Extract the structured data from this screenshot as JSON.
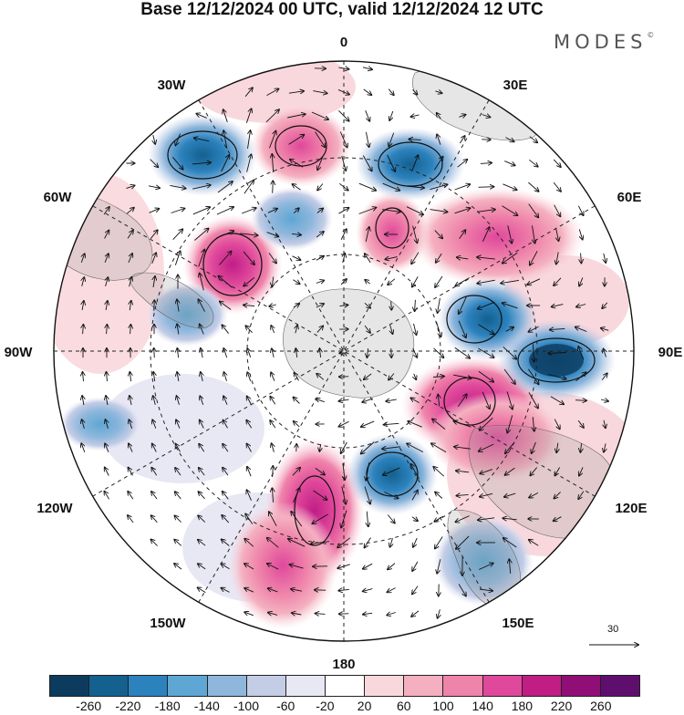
{
  "title": "Base 12/12/2024 00 UTC, valid 12/12/2024 12 UTC",
  "logo": {
    "text": "MODES",
    "mark": "©"
  },
  "longitude_labels": {
    "n0": "0",
    "n30e": "30E",
    "n60e": "60E",
    "n90e": "90E",
    "n120e": "120E",
    "n150e": "150E",
    "n180": "180",
    "n150w": "150W",
    "n120w": "120W",
    "n90w": "90W",
    "n60w": "60W",
    "n30w": "30W"
  },
  "reference_vector": {
    "label": "30"
  },
  "colorbar": {
    "colors": [
      "#0d3b5e",
      "#14608f",
      "#2c82bd",
      "#5ea6d3",
      "#8fb7dc",
      "#c4cde6",
      "#e8e8f4",
      "#ffffff",
      "#f9d8dd",
      "#f4b0c0",
      "#ef84aa",
      "#e0489b",
      "#c01d85",
      "#8f0f77",
      "#5e0f6e"
    ],
    "ticks": [
      "-260",
      "-220",
      "-180",
      "-140",
      "-100",
      "-60",
      "-20",
      "20",
      "60",
      "100",
      "140",
      "180",
      "220",
      "260"
    ]
  },
  "anomalies": [
    {
      "kind": "pos",
      "value": 180
    },
    {
      "kind": "pos",
      "value": 140
    },
    {
      "kind": "pos",
      "value": 220
    },
    {
      "kind": "neg",
      "value": -140
    },
    {
      "kind": "neg",
      "value": -140
    },
    {
      "kind": "neg",
      "value": -220
    },
    {
      "kind": "neg",
      "value": -180
    },
    {
      "kind": "pos",
      "value": 140
    },
    {
      "kind": "pos",
      "value": 180
    },
    {
      "kind": "pos",
      "value": 140
    },
    {
      "kind": "neg",
      "value": -140
    },
    {
      "kind": "neg",
      "value": -100
    },
    {
      "kind": "pos",
      "value": 180
    },
    {
      "kind": "neg",
      "value": -100
    }
  ]
}
